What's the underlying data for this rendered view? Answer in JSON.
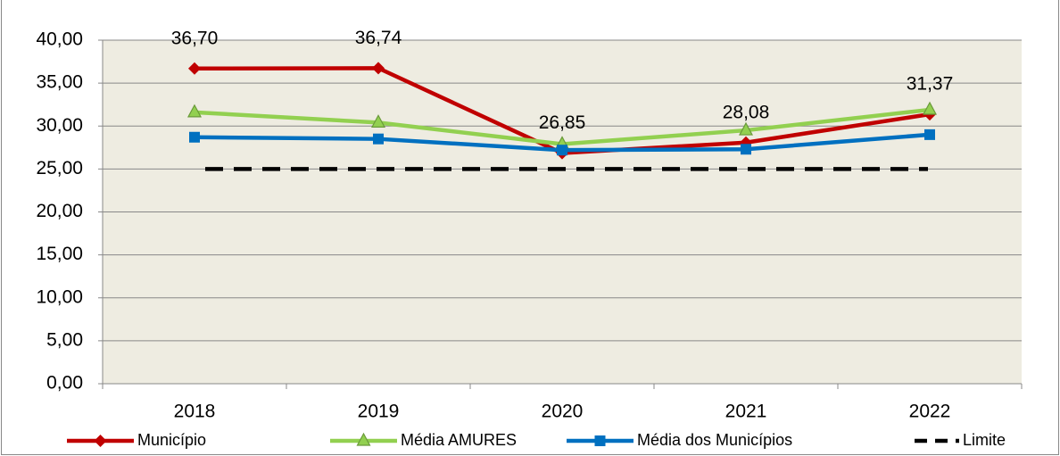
{
  "chart_data": {
    "type": "line",
    "categories": [
      "2018",
      "2019",
      "2020",
      "2021",
      "2022"
    ],
    "series": [
      {
        "name": "Município",
        "color": "#c00000",
        "marker": "diamond",
        "values": [
          36.7,
          36.74,
          26.85,
          28.08,
          31.37
        ],
        "value_labels": [
          "36,70",
          "36,74",
          "26,85",
          "28,08",
          "31,37"
        ]
      },
      {
        "name": "Média AMURES",
        "color": "#92d050",
        "marker": "triangle",
        "values": [
          31.6,
          30.4,
          27.9,
          29.5,
          31.9
        ]
      },
      {
        "name": "Média dos Municípios",
        "color": "#0070c0",
        "marker": "square",
        "values": [
          28.7,
          28.5,
          27.2,
          27.3,
          29.0
        ]
      },
      {
        "name": "Limite",
        "color": "#000000",
        "dash": true,
        "values": [
          25,
          25,
          25,
          25,
          25
        ]
      }
    ],
    "ylim": [
      0,
      40
    ],
    "yticks": [
      {
        "value": 0,
        "label": "0,00"
      },
      {
        "value": 5,
        "label": "5,00"
      },
      {
        "value": 10,
        "label": "10,00"
      },
      {
        "value": 15,
        "label": "15,00"
      },
      {
        "value": 20,
        "label": "20,00"
      },
      {
        "value": 25,
        "label": "25,00"
      },
      {
        "value": 30,
        "label": "30,00"
      },
      {
        "value": 35,
        "label": "35,00"
      },
      {
        "value": 40,
        "label": "40,00"
      }
    ],
    "grid": true,
    "plot_background": "#eeece1",
    "legend": "bottom"
  }
}
